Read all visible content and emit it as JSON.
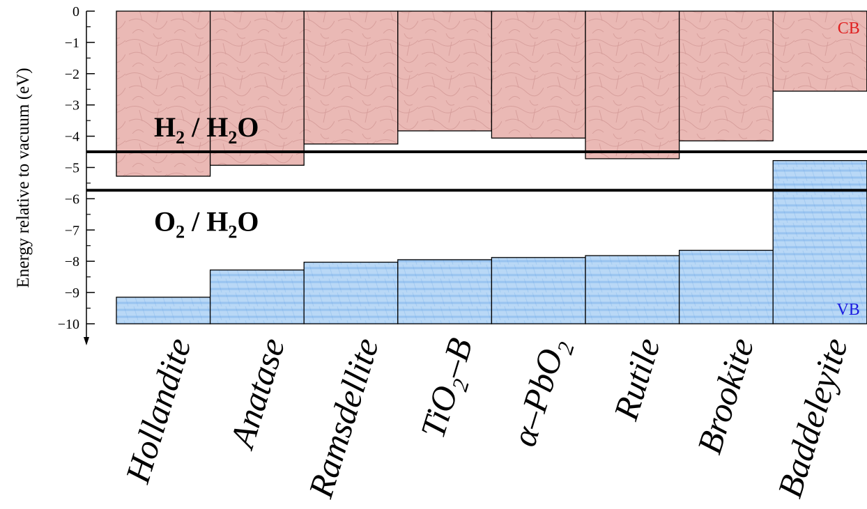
{
  "chart_data": {
    "type": "bar",
    "ylabel": "Energy relative to vacuum (eV)",
    "ylim": [
      -10,
      0
    ],
    "yticks": [
      "0",
      "−1",
      "−2",
      "−3",
      "−4",
      "−5",
      "−6",
      "−7",
      "−8",
      "−9",
      "−10"
    ],
    "categories": [
      {
        "text": "Hollandite"
      },
      {
        "text": "Anatase"
      },
      {
        "text": "Ramsdellite"
      },
      {
        "text": "TiO",
        "sub": "2",
        "tail": "–B"
      },
      {
        "text": "α–PbO",
        "sub": "2",
        "tail": ""
      },
      {
        "text": "Rutile"
      },
      {
        "text": "Brookite"
      },
      {
        "text": "Baddeleyite"
      }
    ],
    "series": [
      {
        "name": "CB",
        "values": [
          -5.28,
          -4.93,
          -4.25,
          -3.83,
          -4.06,
          -4.72,
          -4.15,
          -2.56
        ]
      },
      {
        "name": "VB",
        "values": [
          -9.15,
          -8.28,
          -8.03,
          -7.95,
          -7.88,
          -7.82,
          -7.65,
          -4.78
        ]
      }
    ],
    "reference_lines": [
      {
        "value": -4.5,
        "parts": [
          {
            "t": "H"
          },
          {
            "t": "2",
            "sub": true
          },
          {
            "t": " / H"
          },
          {
            "t": "2",
            "sub": true
          },
          {
            "t": "O"
          }
        ]
      },
      {
        "value": -5.73,
        "parts": [
          {
            "t": "O"
          },
          {
            "t": "2",
            "sub": true
          },
          {
            "t": " / H"
          },
          {
            "t": "2",
            "sub": true
          },
          {
            "t": "O"
          }
        ]
      }
    ],
    "band_labels": {
      "cb": "CB",
      "vb": "VB"
    },
    "colors": {
      "cb_fill": "#eab9b5",
      "cb_pattern": "#c88a88",
      "cb_label": "#e02020",
      "vb_fill": "#b9d8f6",
      "vb_pattern": "#5f9ee4",
      "vb_label": "#1a1ae0",
      "line": "#000000"
    }
  }
}
